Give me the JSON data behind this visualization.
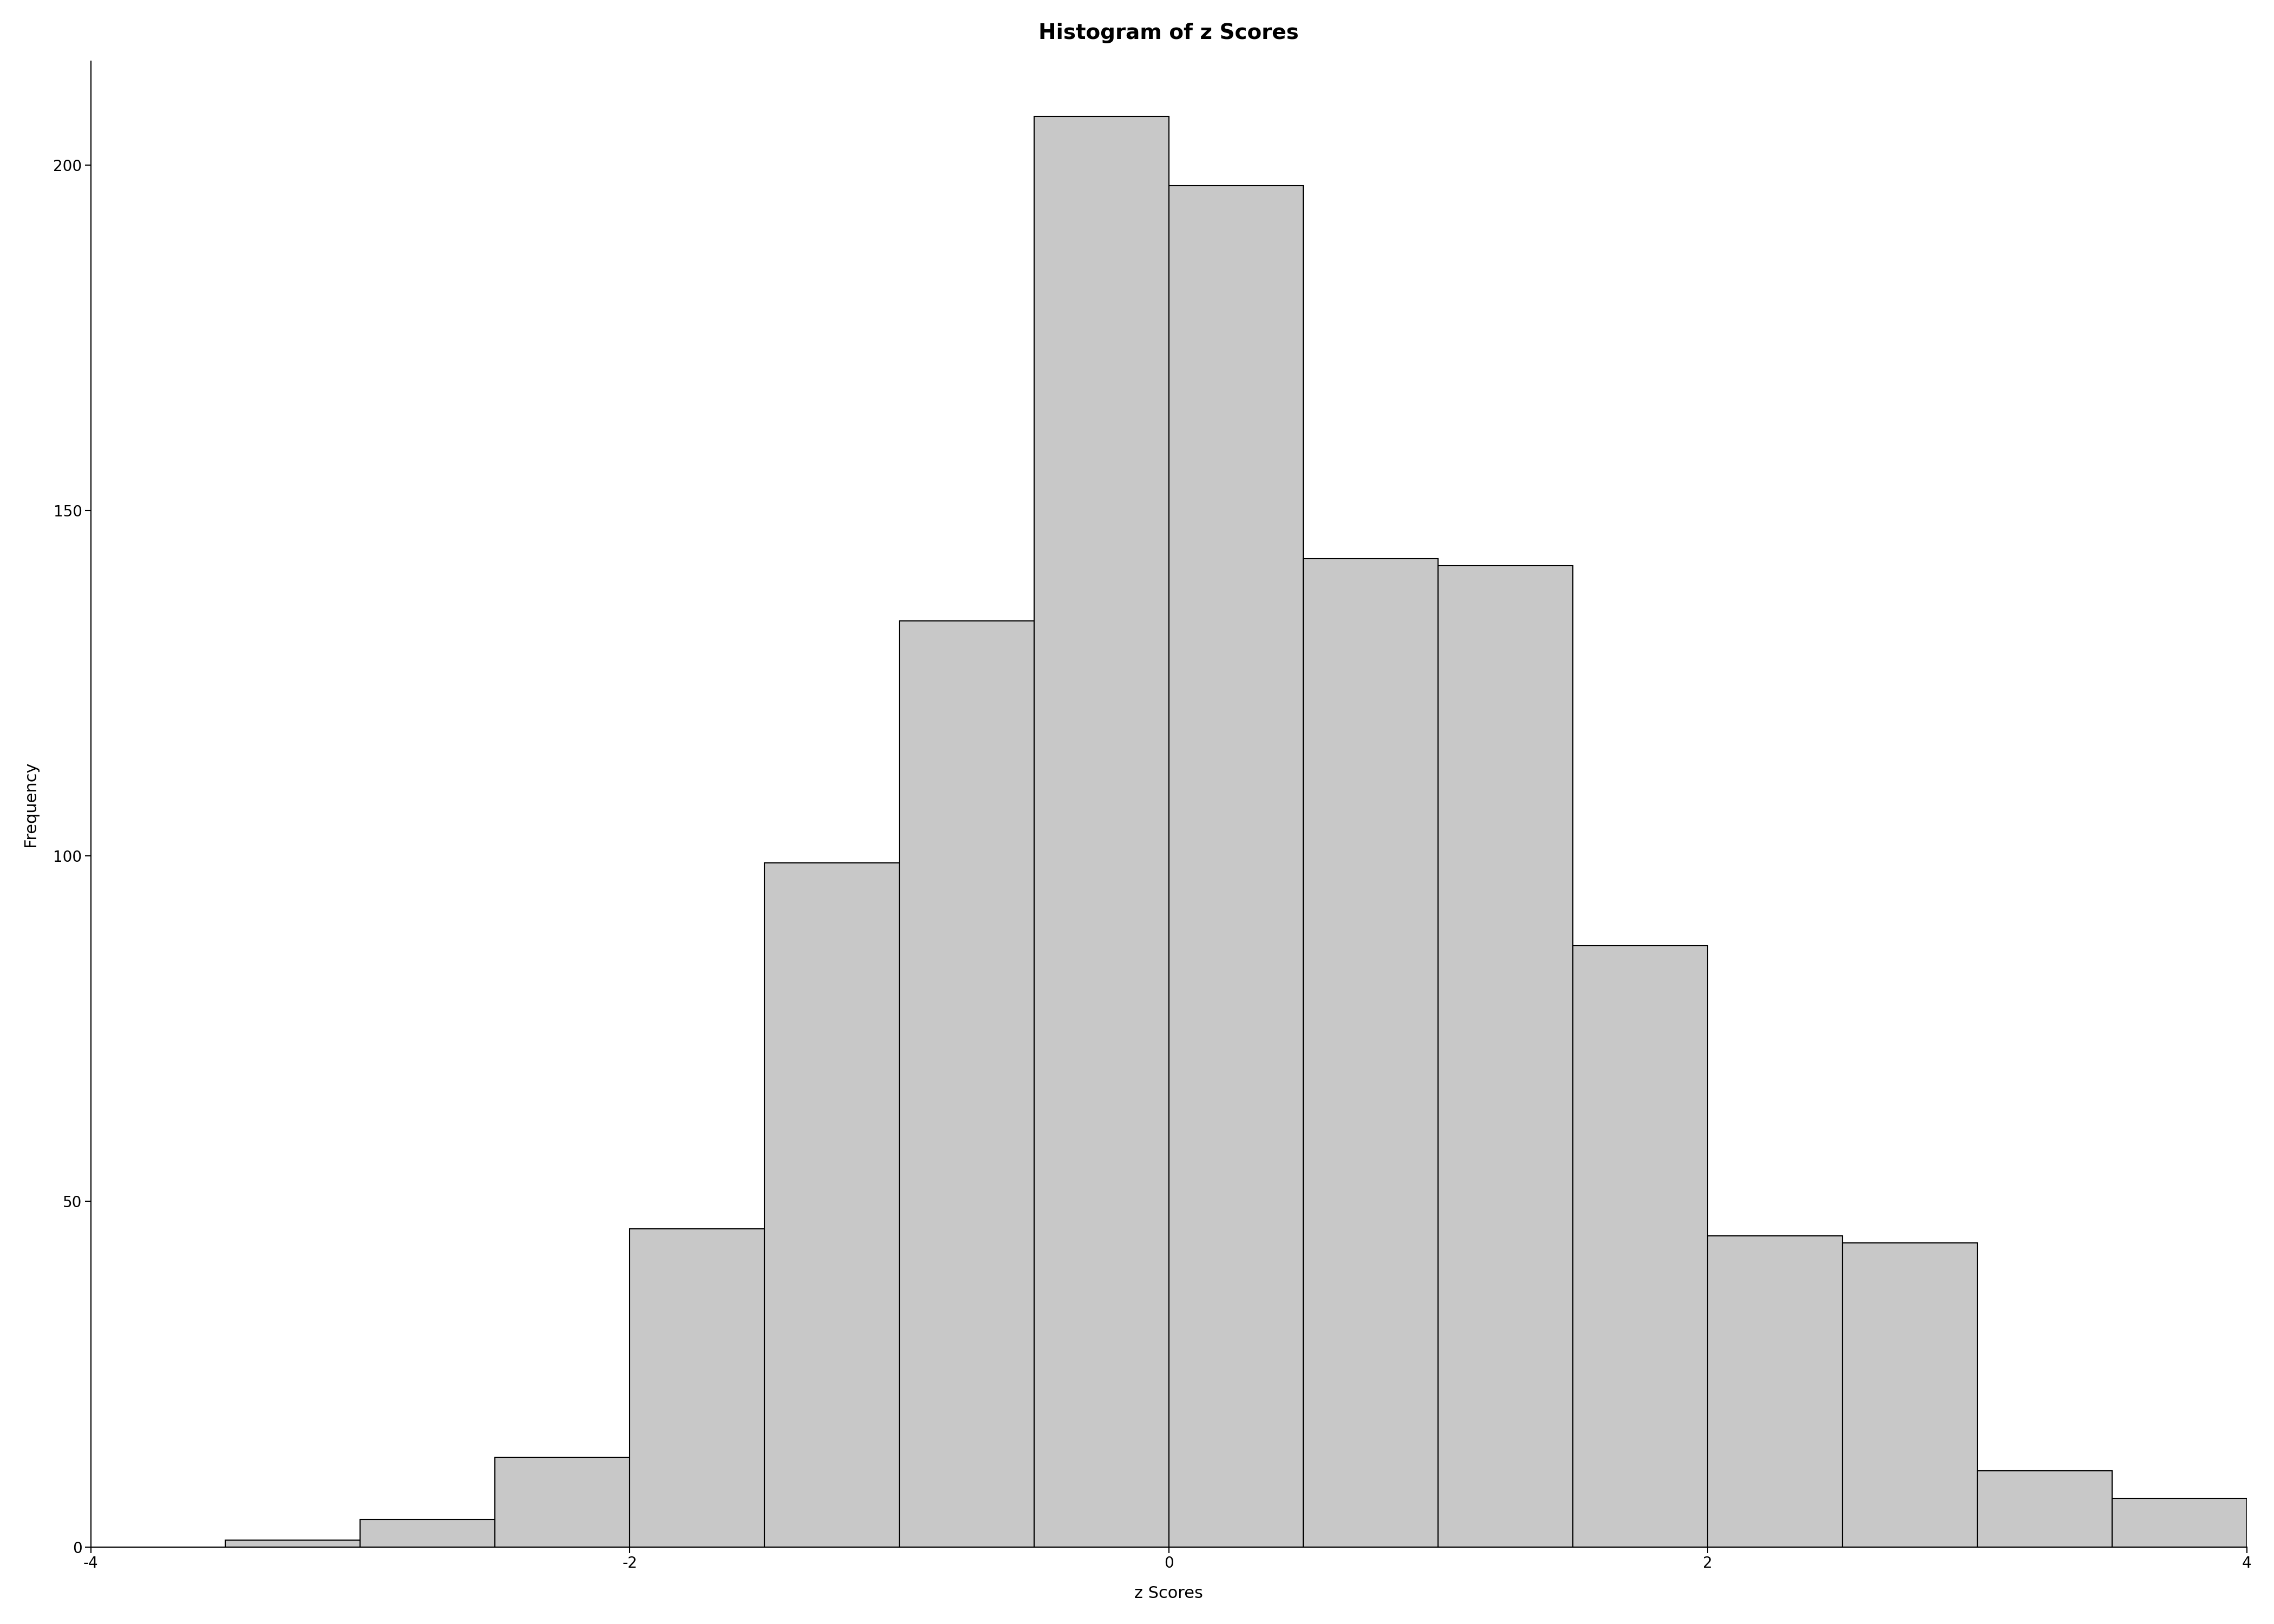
{
  "title": "Histogram of z Scores",
  "xlabel": "z Scores",
  "ylabel": "Frequency",
  "bar_color": "#c8c8c8",
  "bar_edge_color": "#000000",
  "background_color": "#ffffff",
  "xlim": [
    -4,
    4
  ],
  "ylim": [
    0,
    215
  ],
  "xticks": [
    -4,
    -2,
    0,
    2,
    4
  ],
  "yticks": [
    0,
    50,
    100,
    150,
    200
  ],
  "bin_edges": [
    -3.5,
    -3.0,
    -2.5,
    -2.0,
    -1.5,
    -1.0,
    -0.5,
    0.0,
    0.5,
    1.0,
    1.5,
    2.0,
    2.5,
    3.0,
    3.5,
    4.0
  ],
  "frequencies": [
    1,
    4,
    13,
    46,
    99,
    134,
    207,
    197,
    143,
    142,
    87,
    45,
    44,
    11,
    7
  ],
  "title_fontsize": 28,
  "axis_label_fontsize": 22,
  "tick_fontsize": 20,
  "title_fontweight": "bold"
}
